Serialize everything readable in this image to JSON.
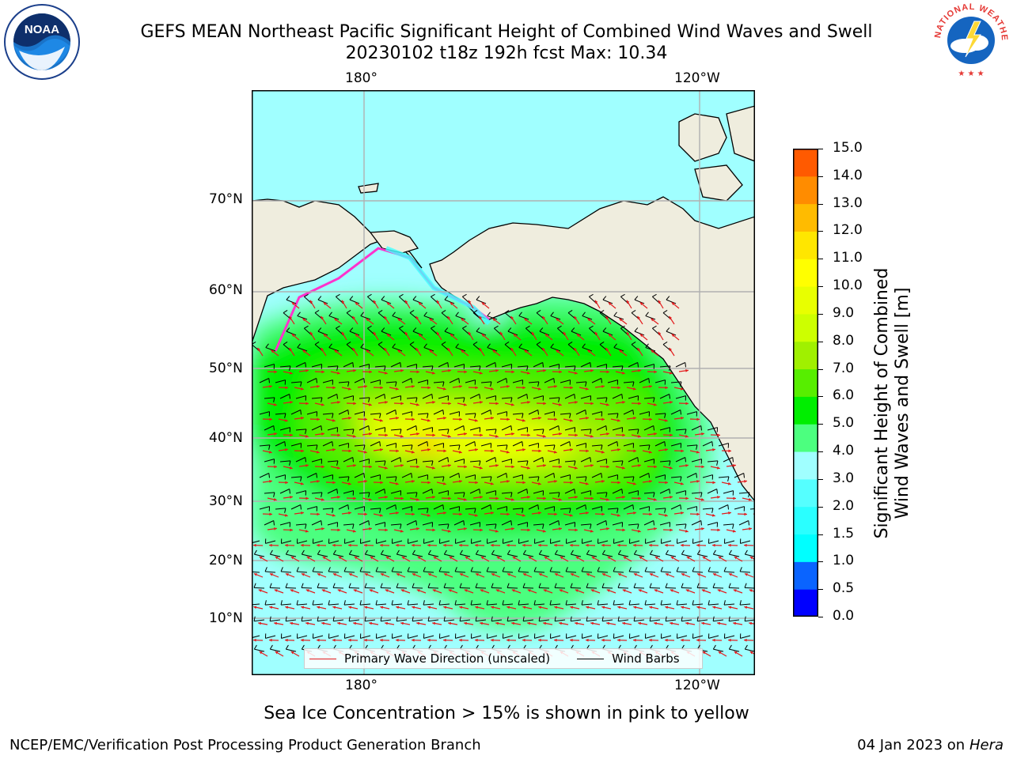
{
  "header": {
    "title_line1": "GEFS MEAN Northeast Pacific Significant Height of Combined Wind Waves and Swell",
    "title_line2": "20230102 t18z 192h fcst   Max: 10.34"
  },
  "logos": {
    "left": {
      "icon": "noaa-logo-icon",
      "text": "NOAA"
    },
    "right": {
      "icon": "national-weather-service-logo-icon",
      "text": "NATIONAL WEATHER SERVICE"
    }
  },
  "map": {
    "top_lon_labels": [
      "180°",
      "120°W"
    ],
    "bottom_lon_labels": [
      "180°",
      "120°W"
    ],
    "lat_labels": [
      "70°N",
      "60°N",
      "50°N",
      "40°N",
      "30°N",
      "20°N",
      "10°N"
    ],
    "land_color": "#efedde",
    "ice_note": "Sea Ice Concentration > 15% is shown in pink to yellow"
  },
  "legend": {
    "wave_label": "Primary Wave Direction (unscaled)",
    "wave_color": "#e31a1c",
    "barb_label": "Wind Barbs",
    "barb_color": "#000000"
  },
  "colorbar": {
    "label_line1": "Significant Height of Combined",
    "label_line2": "Wind Waves and Swell [m]",
    "ticks": [
      "15.0",
      "14.0",
      "13.0",
      "12.0",
      "11.0",
      "10.0",
      "9.0",
      "8.0",
      "7.0",
      "6.0",
      "5.0",
      "4.0",
      "3.0",
      "2.0",
      "1.5",
      "1.0",
      "0.5",
      "0.0"
    ],
    "colors": [
      "#0000ff",
      "#0a64ff",
      "#00ffff",
      "#2affff",
      "#55ffff",
      "#a0ffff",
      "#4cff7f",
      "#00ee00",
      "#57ee00",
      "#a0f000",
      "#cdff00",
      "#e8ff00",
      "#ffff00",
      "#ffe600",
      "#ffbb00",
      "#ff8c00",
      "#ff5a00",
      "#ff2800",
      "#ff0000"
    ]
  },
  "footer": {
    "left": "NCEP/EMC/Verification Post Processing Product Generation Branch",
    "right_date": "04 Jan 2023 on ",
    "right_machine": "Hera"
  }
}
